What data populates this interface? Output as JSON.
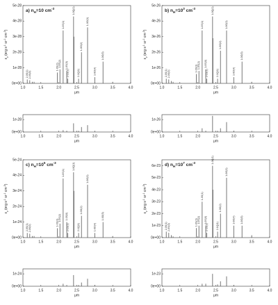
{
  "chart_data": [
    {
      "type": "stem",
      "panel": "main",
      "row": 0,
      "col": 0,
      "title": [
        {
          "text": "a) n"
        },
        {
          "text": "H",
          "sub": true
        },
        {
          "text": "=10 cm"
        },
        {
          "text": "-3",
          "sup": true
        }
      ],
      "ylabel": [
        {
          "text": "ε"
        },
        {
          "text": "ν",
          "sub": true
        },
        {
          "text": " (erg s"
        },
        {
          "text": "-1",
          "sup": true
        },
        {
          "text": " sr"
        },
        {
          "text": "-1",
          "sup": true
        },
        {
          "text": " cm"
        },
        {
          "text": "-3",
          "sup": true
        },
        {
          "text": ")"
        }
      ],
      "xlabel": "μm",
      "x": [
        1.12,
        1.19,
        1.26,
        1.31,
        1.96,
        2.03,
        2.12,
        2.22,
        2.25,
        2.41,
        2.42,
        2.55,
        2.63,
        2.8,
        3.0,
        3.23,
        3.5
      ],
      "values": [
        2.5e-29,
        2e-29,
        1e-29,
        1e-29,
        7e-29,
        9e-29,
        3.4e-28,
        8e-29,
        3e-29,
        4.3e-28,
        3e-28,
        3e-29,
        2e-28,
        3.6e-28,
        4e-29,
        1.4e-28,
        1e-29
      ],
      "line_labels": [
        "2-0S(1)",
        "2-0S(0)",
        null,
        null,
        "1-0S(3)",
        "1-0S(2)",
        "1-0S(1)",
        "1-0S(0)",
        "2-1S(1)",
        "1-0Q(1)",
        null,
        "2-1Q(1)",
        "1-0O(2)",
        "1-0O(3)",
        "1-0O(4)",
        "1-0O(5)",
        null
      ],
      "xlim": [
        1,
        4
      ],
      "xticks": [
        {
          "value": 1,
          "label": "1.0"
        },
        1.5,
        {
          "value": 2,
          "label": "2.0"
        },
        2.5,
        {
          "value": 3,
          "label": "3.0"
        },
        3.5,
        {
          "value": 4,
          "label": "4.0"
        }
      ],
      "ylim": [
        0,
        5e-28
      ],
      "yticks": [
        {
          "value": 0,
          "label": "0e+00"
        },
        1e-28,
        2e-28,
        3e-28,
        4e-28,
        5e-28
      ],
      "color": "#555555"
    },
    {
      "type": "stem",
      "panel": "residual",
      "row": 0,
      "col": 0,
      "xlabel": "μm",
      "x": [
        2.12,
        2.22,
        2.41,
        2.55,
        2.63,
        2.8,
        3.0
      ],
      "values": [
        1.5e-29,
        1e-29,
        7e-29,
        1e-29,
        4e-29,
        5.5e-29,
        5e-30
      ],
      "xlim": [
        1,
        4
      ],
      "xticks": [
        {
          "value": 1,
          "label": "1.0"
        },
        1.5,
        {
          "value": 2,
          "label": "2.0"
        },
        2.5,
        {
          "value": 3,
          "label": "3.0"
        },
        3.5,
        {
          "value": 4,
          "label": "4.0"
        }
      ],
      "ylim": [
        0,
        1.4e-28
      ],
      "yticks": [
        {
          "value": 0,
          "label": "0e+00"
        },
        1e-28
      ],
      "color": "#555555"
    },
    {
      "type": "stem",
      "panel": "main",
      "row": 0,
      "col": 1,
      "title": [
        {
          "text": "b) n"
        },
        {
          "text": "H",
          "sub": true
        },
        {
          "text": "=10"
        },
        {
          "text": "3",
          "sup": true
        },
        {
          "text": " cm"
        },
        {
          "text": "-3",
          "sup": true
        }
      ],
      "ylabel": [
        {
          "text": "ε"
        },
        {
          "text": "ν",
          "sub": true
        },
        {
          "text": " (erg s"
        },
        {
          "text": "-1",
          "sup": true
        },
        {
          "text": " sr"
        },
        {
          "text": "-1",
          "sup": true
        },
        {
          "text": " cm"
        },
        {
          "text": "-3",
          "sup": true
        },
        {
          "text": ")"
        }
      ],
      "xlabel": "μm",
      "x": [
        1.12,
        1.19,
        1.26,
        1.31,
        1.96,
        2.03,
        2.12,
        2.22,
        2.25,
        2.41,
        2.42,
        2.55,
        2.63,
        2.8,
        3.0,
        3.23,
        3.5
      ],
      "values": [
        3e-27,
        2.5e-27,
        1.5e-27,
        1e-27,
        6e-27,
        8e-27,
        3.4e-26,
        9e-27,
        3e-27,
        4.3e-26,
        2.9e-26,
        3e-27,
        2.1e-26,
        3.4e-26,
        4e-27,
        1.4e-26,
        1e-27
      ],
      "line_labels": [
        "2-0S(1)",
        "2-0S(0)",
        null,
        null,
        "1-0S(3)",
        "1-0S(2)",
        "1-0S(1)",
        "1-0S(0)",
        "2-1S(1)",
        "1-0Q(1)",
        null,
        "2-1Q(1)",
        "1-0O(2)",
        "1-0O(3)",
        "1-0O(4)",
        "1-0O(5)",
        null
      ],
      "xlim": [
        1,
        4
      ],
      "xticks": [
        {
          "value": 1,
          "label": "1.0"
        },
        1.5,
        {
          "value": 2,
          "label": "2.0"
        },
        2.5,
        {
          "value": 3,
          "label": "3.0"
        },
        3.5,
        {
          "value": 4,
          "label": "4.0"
        }
      ],
      "ylim": [
        0,
        5e-26
      ],
      "yticks": [
        {
          "value": 0,
          "label": "0e+00"
        },
        1e-26,
        2e-26,
        3e-26,
        4e-26,
        5e-26
      ],
      "color": "#555555"
    },
    {
      "type": "stem",
      "panel": "residual",
      "row": 0,
      "col": 1,
      "xlabel": "μm",
      "x": [
        2.12,
        2.22,
        2.41,
        2.55,
        2.63,
        2.8,
        3.0
      ],
      "values": [
        3e-27,
        1e-27,
        1.3e-26,
        1e-27,
        3e-27,
        8e-27,
        1e-27
      ],
      "xlim": [
        1,
        4
      ],
      "xticks": [
        {
          "value": 1,
          "label": "1.0"
        },
        1.5,
        {
          "value": 2,
          "label": "2.0"
        },
        2.5,
        {
          "value": 3,
          "label": "3.0"
        },
        3.5,
        {
          "value": 4,
          "label": "4.0"
        }
      ],
      "ylim": [
        0,
        1.4e-26
      ],
      "yticks": [
        {
          "value": 0,
          "label": "0e+00"
        },
        1e-26
      ],
      "color": "#555555"
    },
    {
      "type": "stem",
      "panel": "main",
      "row": 1,
      "col": 0,
      "title": [
        {
          "text": "c) n"
        },
        {
          "text": "H",
          "sub": true
        },
        {
          "text": "=10"
        },
        {
          "text": "5",
          "sup": true
        },
        {
          "text": " cm"
        },
        {
          "text": "-3",
          "sup": true
        }
      ],
      "ylabel": [
        {
          "text": "ε"
        },
        {
          "text": "ν",
          "sub": true
        },
        {
          "text": " (erg s"
        },
        {
          "text": "-1",
          "sup": true
        },
        {
          "text": " sr"
        },
        {
          "text": "-1",
          "sup": true
        },
        {
          "text": " cm"
        },
        {
          "text": "-3",
          "sup": true
        },
        {
          "text": ")"
        }
      ],
      "xlabel": "μm",
      "x": [
        1.12,
        1.19,
        1.26,
        1.31,
        1.96,
        2.03,
        2.12,
        2.22,
        2.25,
        2.41,
        2.42,
        2.55,
        2.63,
        2.8,
        3.0,
        3.23,
        3.5
      ],
      "values": [
        3e-25,
        2.5e-25,
        1e-25,
        1e-25,
        6e-25,
        9e-25,
        3.8e-24,
        1e-24,
        3e-25,
        4.2e-24,
        3e-24,
        3e-25,
        1.4e-24,
        3.4e-24,
        3e-25,
        1e-24,
        1e-25
      ],
      "line_labels": [
        "2-0S(1)",
        "2-0S(0)",
        null,
        null,
        "1-0S(3)",
        "1-0S(2)",
        "1-0S(1)",
        "1-0S(0)",
        "2-1S(1)",
        "1-0Q(1)",
        null,
        "2-1Q(1)",
        "1-0O(2)",
        "1-0O(3)",
        "1-0O(4)",
        "1-0O(5)",
        null
      ],
      "xlim": [
        1,
        4
      ],
      "xticks": [
        {
          "value": 1,
          "label": "1.0"
        },
        1.5,
        {
          "value": 2,
          "label": "2.0"
        },
        2.5,
        {
          "value": 3,
          "label": "3.0"
        },
        3.5,
        {
          "value": 4,
          "label": "4.0"
        }
      ],
      "ylim": [
        0,
        5e-24
      ],
      "yticks": [
        {
          "value": 0,
          "label": "0e+00"
        },
        1e-24,
        2e-24,
        3e-24,
        4e-24,
        5e-24
      ],
      "color": "#555555"
    },
    {
      "type": "stem",
      "panel": "residual",
      "row": 1,
      "col": 0,
      "xlabel": "μm",
      "x": [
        2.12,
        2.22,
        2.41,
        2.55,
        2.63,
        2.8,
        3.0
      ],
      "values": [
        2e-25,
        1e-25,
        9e-25,
        1e-25,
        3e-25,
        6e-25,
        1e-25
      ],
      "xlim": [
        1,
        4
      ],
      "xticks": [
        {
          "value": 1,
          "label": "1.0"
        },
        1.5,
        {
          "value": 2,
          "label": "2.0"
        },
        2.5,
        {
          "value": 3,
          "label": "3.0"
        },
        3.5,
        {
          "value": 4,
          "label": "4.0"
        }
      ],
      "ylim": [
        0,
        1.4e-24
      ],
      "yticks": [
        {
          "value": 0,
          "label": "0e+00"
        },
        1e-24
      ],
      "color": "#555555"
    },
    {
      "type": "stem",
      "panel": "main",
      "row": 1,
      "col": 1,
      "title": [
        {
          "text": "d) n"
        },
        {
          "text": "H",
          "sub": true
        },
        {
          "text": "=10"
        },
        {
          "text": "7",
          "sup": true
        },
        {
          "text": " cm"
        },
        {
          "text": "-3",
          "sup": true
        }
      ],
      "ylabel": [
        {
          "text": "ε"
        },
        {
          "text": "ν",
          "sub": true
        },
        {
          "text": " (erg s"
        },
        {
          "text": "-1",
          "sup": true
        },
        {
          "text": " sr"
        },
        {
          "text": "-1",
          "sup": true
        },
        {
          "text": " cm"
        },
        {
          "text": "-3",
          "sup": true
        },
        {
          "text": ")"
        }
      ],
      "xlabel": "μm",
      "x": [
        1.12,
        1.19,
        1.26,
        1.31,
        1.96,
        2.03,
        2.12,
        2.22,
        2.25,
        2.41,
        2.42,
        2.55,
        2.63,
        2.8,
        3.0,
        3.23,
        3.5
      ],
      "values": [
        5e-24,
        4e-24,
        2e-24,
        1e-24,
        8e-24,
        1e-23,
        3e-23,
        1e-23,
        4e-24,
        6e-23,
        4e-23,
        5e-24,
        2e-23,
        5e-23,
        1e-23,
        1e-23,
        2e-24
      ],
      "line_labels": [
        "2-0S(1)",
        "2-0S(0)",
        null,
        null,
        "1-0S(3)",
        "1-0S(2)",
        "1-0S(1)",
        "1-0S(0)",
        "2-1S(1)",
        "1-0Q(1)",
        null,
        "2-1Q(1)",
        "1-0O(2)",
        "1-0O(3)",
        "1-0O(4)",
        "1-0O(5)",
        null
      ],
      "xlim": [
        1,
        4
      ],
      "xticks": [
        {
          "value": 1,
          "label": "1.0"
        },
        1.5,
        {
          "value": 2,
          "label": "2.0"
        },
        2.5,
        {
          "value": 3,
          "label": "3.0"
        },
        3.5,
        {
          "value": 4,
          "label": "4.0"
        }
      ],
      "ylim": [
        0,
        6.5e-23
      ],
      "yticks": [
        {
          "value": 0,
          "label": "0e+00"
        },
        1e-23,
        2e-23,
        3e-23,
        4e-23,
        5e-23,
        6e-23
      ],
      "color": "#555555"
    },
    {
      "type": "stem",
      "panel": "residual",
      "row": 1,
      "col": 1,
      "xlabel": "μm",
      "x": [
        2.12,
        2.22,
        2.41,
        2.55,
        2.63,
        2.8,
        3.0
      ],
      "values": [
        2e-24,
        2e-24,
        1e-23,
        1.5e-24,
        4e-24,
        8e-24,
        1e-24
      ],
      "xlim": [
        1,
        4
      ],
      "xticks": [
        {
          "value": 1,
          "label": "1.0"
        },
        1.5,
        {
          "value": 2,
          "label": "2.0"
        },
        2.5,
        {
          "value": 3,
          "label": "3.0"
        },
        3.5,
        {
          "value": 4,
          "label": "4.0"
        }
      ],
      "ylim": [
        0,
        1.4e-23
      ],
      "yticks": [
        {
          "value": 0,
          "label": "0e+00"
        },
        1e-23
      ],
      "color": "#555555"
    }
  ]
}
